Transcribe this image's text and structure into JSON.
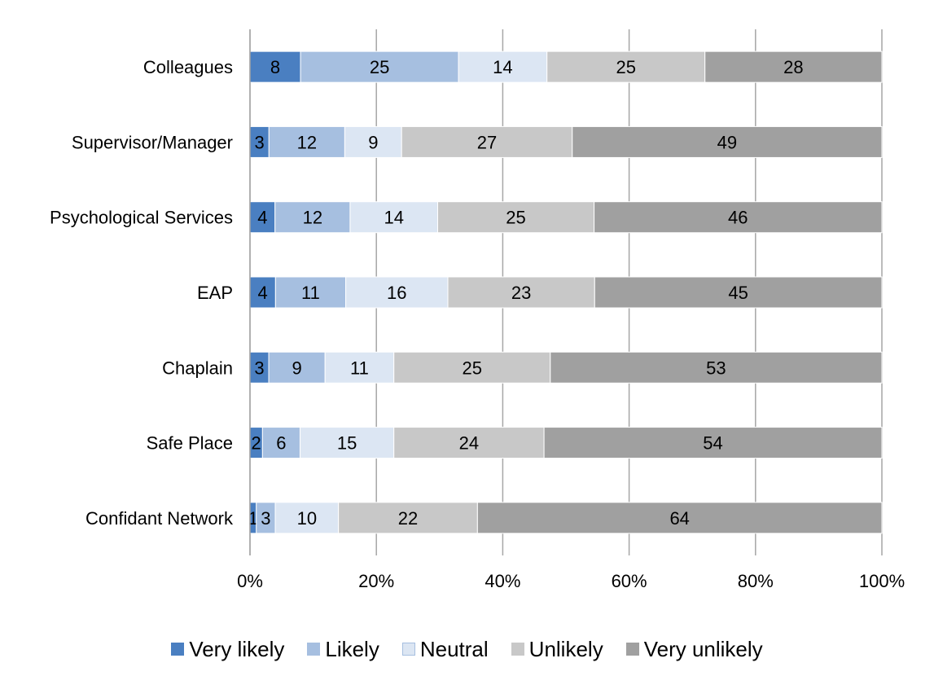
{
  "chart_data": {
    "type": "bar",
    "orientation": "horizontal",
    "stacked": "percent",
    "categories": [
      "Colleagues",
      "Supervisor/Manager",
      "Psychological Services",
      "EAP",
      "Chaplain",
      "Safe Place",
      "Confidant Network"
    ],
    "series": [
      {
        "name": "Very likely",
        "color": "#4a7fc1",
        "values": [
          8,
          3,
          4,
          4,
          3,
          2,
          1
        ]
      },
      {
        "name": "Likely",
        "color": "#a6bfe0",
        "values": [
          25,
          12,
          12,
          11,
          9,
          6,
          3
        ]
      },
      {
        "name": "Neutral",
        "color": "#dce6f3",
        "values": [
          14,
          9,
          14,
          16,
          11,
          15,
          10
        ]
      },
      {
        "name": "Unlikely",
        "color": "#c8c8c8",
        "values": [
          25,
          27,
          25,
          23,
          25,
          24,
          22
        ]
      },
      {
        "name": "Very unlikely",
        "color": "#a0a0a0",
        "values": [
          28,
          49,
          46,
          45,
          53,
          54,
          64
        ]
      }
    ],
    "xticks": [
      "0%",
      "20%",
      "40%",
      "60%",
      "80%",
      "100%"
    ],
    "xlim": [
      0,
      100
    ],
    "grid": true,
    "legend_position": "bottom",
    "title": "",
    "xlabel": "",
    "ylabel": ""
  }
}
